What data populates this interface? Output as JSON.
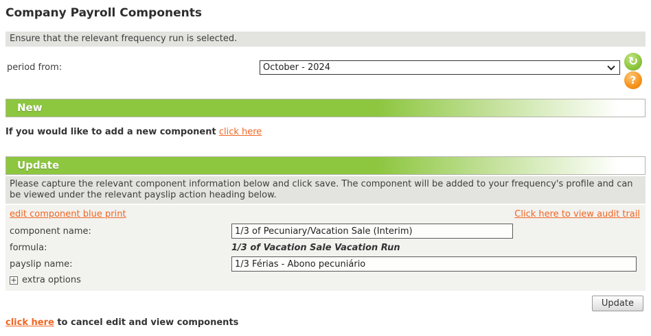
{
  "page": {
    "title": "Company Payroll Components"
  },
  "notice": "Ensure that the relevant frequency run is selected.",
  "period": {
    "label": "period from:",
    "value": "October - 2024"
  },
  "toolbar": {
    "refresh_icon": "↻",
    "help_icon": "?"
  },
  "new_section": {
    "title": "New",
    "prompt": "If you would like to add a new component",
    "link_label": "click here"
  },
  "update_section": {
    "title": "Update",
    "instructions": "Please capture the relevant component information below and click save. The component will be added to your frequency's profile and can be viewed under the relevant payslip action heading below.",
    "blueprint_link": "edit component blue print",
    "audit_link": "Click here to view audit trail",
    "fields": {
      "component_name": {
        "label": "component name:",
        "value": "1/3 of Pecuniary/Vacation Sale (Interim)"
      },
      "formula": {
        "label": "formula:",
        "value": "1/3 of Vacation Sale Vacation Run"
      },
      "payslip_name": {
        "label": "payslip name:",
        "value": "1/3 Férias - Abono pecuniário"
      }
    },
    "extra_options_label": "extra options",
    "expand_icon": "+",
    "update_button": "Update"
  },
  "cancel": {
    "link_label": "click here",
    "text": " to cancel edit and view components"
  },
  "colors": {
    "green": "#8dc63f",
    "link_orange": "#f26522",
    "icon_orange": "#f7941d",
    "bar_gray": "#e3e3df",
    "panel_bg": "#f2f2ef"
  }
}
